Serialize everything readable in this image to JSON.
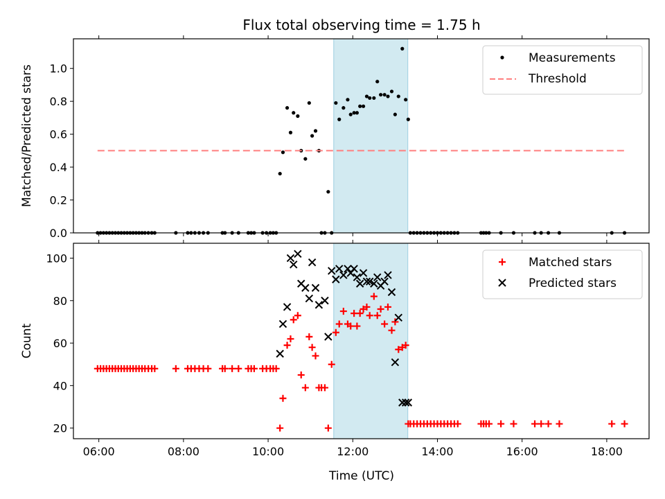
{
  "figure": {
    "title": "Flux total observing time = 1.75 h",
    "xlabel": "Time (UTC)",
    "highlight_window": [
      11.55,
      13.3
    ],
    "highlight_color": "#add8e6"
  },
  "chart_data": [
    {
      "type": "scatter",
      "ylabel": "Matched/Predicted stars",
      "xlim": [
        5.4,
        19.0
      ],
      "ylim": [
        0,
        1.18
      ],
      "xticks": [
        6,
        8,
        10,
        12,
        14,
        16,
        18
      ],
      "xtick_labels": [
        "06:00",
        "08:00",
        "10:00",
        "12:00",
        "14:00",
        "16:00",
        "18:00"
      ],
      "yticks": [
        0,
        0.2,
        0.4,
        0.6,
        0.8,
        1.0
      ],
      "ytick_labels": [
        "0.0",
        "0.2",
        "0.4",
        "0.6",
        "0.8",
        "1.0"
      ],
      "legend_position": "top-right",
      "series": [
        {
          "name": "Measurements",
          "kind": "dots",
          "color": "#000000",
          "x": [
            5.97,
            6.04,
            6.11,
            6.18,
            6.25,
            6.32,
            6.39,
            6.46,
            6.53,
            6.6,
            6.67,
            6.74,
            6.81,
            6.88,
            6.95,
            7.02,
            7.09,
            7.17,
            7.25,
            7.32,
            7.82,
            8.1,
            8.18,
            8.27,
            8.37,
            8.47,
            8.58,
            8.92,
            8.98,
            9.15,
            9.3,
            9.53,
            9.6,
            9.67,
            9.87,
            9.96,
            10.05,
            10.12,
            10.19,
            10.28,
            10.35,
            10.45,
            10.53,
            10.6,
            10.7,
            10.78,
            10.88,
            10.97,
            11.04,
            11.12,
            11.2,
            11.26,
            11.34,
            11.42,
            11.5,
            11.6,
            11.68,
            11.78,
            11.88,
            11.95,
            12.03,
            12.1,
            12.17,
            12.25,
            12.33,
            12.4,
            12.5,
            12.58,
            12.66,
            12.75,
            12.83,
            12.92,
            13.0,
            13.08,
            13.17,
            13.25,
            13.31,
            13.36,
            13.44,
            13.52,
            13.6,
            13.68,
            13.76,
            13.84,
            13.92,
            14.0,
            14.08,
            14.16,
            14.24,
            14.32,
            14.4,
            14.48,
            15.03,
            15.09,
            15.15,
            15.22,
            15.5,
            15.8,
            16.3,
            16.45,
            16.62,
            16.88,
            18.12,
            18.42
          ],
          "y": [
            0,
            0,
            0,
            0,
            0,
            0,
            0,
            0,
            0,
            0,
            0,
            0,
            0,
            0,
            0,
            0,
            0,
            0,
            0,
            0,
            0,
            0,
            0,
            0,
            0,
            0,
            0,
            0,
            0,
            0,
            0,
            0,
            0,
            0,
            0,
            0,
            0,
            0,
            0,
            0.36,
            0.49,
            0.76,
            0.61,
            0.73,
            0.71,
            0.5,
            0.45,
            0.79,
            0.59,
            0.62,
            0.5,
            0,
            0,
            0.25,
            0,
            0.79,
            0.69,
            0.76,
            0.81,
            0.72,
            0.73,
            0.73,
            0.77,
            0.77,
            0.83,
            0.82,
            0.82,
            0.92,
            0.84,
            0.84,
            0.83,
            0.86,
            0.72,
            0.83,
            1.12,
            0.81,
            0.69,
            0,
            0,
            0,
            0,
            0,
            0,
            0,
            0,
            0,
            0,
            0,
            0,
            0,
            0,
            0,
            0,
            0,
            0,
            0,
            0,
            0,
            0,
            0,
            0,
            0,
            0,
            0
          ]
        },
        {
          "name": "Threshold",
          "kind": "dashed-line",
          "color": "#ff7f7f",
          "x": [
            5.97,
            18.42
          ],
          "y": [
            0.5,
            0.5
          ]
        }
      ]
    },
    {
      "type": "scatter",
      "ylabel": "Count",
      "xlim": [
        5.4,
        19.0
      ],
      "ylim": [
        15,
        107
      ],
      "xticks": [
        6,
        8,
        10,
        12,
        14,
        16,
        18
      ],
      "xtick_labels": [
        "06:00",
        "08:00",
        "10:00",
        "12:00",
        "14:00",
        "16:00",
        "18:00"
      ],
      "yticks": [
        20,
        40,
        60,
        80,
        100
      ],
      "ytick_labels": [
        "20",
        "40",
        "60",
        "80",
        "100"
      ],
      "legend_position": "top-right",
      "series": [
        {
          "name": "Matched stars",
          "kind": "plus",
          "color": "#ff0000",
          "x": [
            5.97,
            6.04,
            6.11,
            6.18,
            6.25,
            6.32,
            6.39,
            6.46,
            6.53,
            6.6,
            6.67,
            6.74,
            6.81,
            6.88,
            6.95,
            7.02,
            7.09,
            7.17,
            7.25,
            7.32,
            7.82,
            8.1,
            8.18,
            8.27,
            8.37,
            8.47,
            8.58,
            8.92,
            8.98,
            9.15,
            9.3,
            9.53,
            9.6,
            9.67,
            9.87,
            9.96,
            10.05,
            10.12,
            10.19,
            10.28,
            10.35,
            10.45,
            10.53,
            10.6,
            10.7,
            10.78,
            10.88,
            10.97,
            11.04,
            11.12,
            11.2,
            11.26,
            11.34,
            11.42,
            11.5,
            11.6,
            11.68,
            11.78,
            11.88,
            11.95,
            12.03,
            12.1,
            12.17,
            12.25,
            12.33,
            12.4,
            12.5,
            12.58,
            12.66,
            12.75,
            12.83,
            12.92,
            13.0,
            13.08,
            13.17,
            13.25,
            13.31,
            13.36,
            13.44,
            13.52,
            13.6,
            13.68,
            13.76,
            13.84,
            13.92,
            14.0,
            14.08,
            14.16,
            14.24,
            14.32,
            14.4,
            14.48,
            15.03,
            15.09,
            15.15,
            15.22,
            15.5,
            15.8,
            16.3,
            16.45,
            16.62,
            16.88,
            18.12,
            18.42
          ],
          "y": [
            48,
            48,
            48,
            48,
            48,
            48,
            48,
            48,
            48,
            48,
            48,
            48,
            48,
            48,
            48,
            48,
            48,
            48,
            48,
            48,
            48,
            48,
            48,
            48,
            48,
            48,
            48,
            48,
            48,
            48,
            48,
            48,
            48,
            48,
            48,
            48,
            48,
            48,
            48,
            20,
            34,
            59,
            62,
            71,
            73,
            45,
            39,
            63,
            58,
            54,
            39,
            39,
            39,
            20,
            50,
            65,
            69,
            75,
            69,
            68,
            74,
            68,
            74,
            76,
            77,
            73,
            82,
            73,
            76,
            69,
            77,
            66,
            70,
            57,
            58,
            59,
            22,
            22,
            22,
            22,
            22,
            22,
            22,
            22,
            22,
            22,
            22,
            22,
            22,
            22,
            22,
            22,
            22,
            22,
            22,
            22,
            22,
            22,
            22,
            22,
            22,
            22,
            22,
            22
          ]
        },
        {
          "name": "Predicted stars",
          "kind": "cross",
          "color": "#000000",
          "x": [
            10.28,
            10.35,
            10.45,
            10.53,
            10.6,
            10.7,
            10.78,
            10.88,
            10.97,
            11.04,
            11.12,
            11.2,
            11.34,
            11.42,
            11.5,
            11.6,
            11.68,
            11.78,
            11.88,
            11.95,
            12.03,
            12.1,
            12.17,
            12.25,
            12.33,
            12.4,
            12.5,
            12.58,
            12.66,
            12.75,
            12.83,
            12.92,
            13.0,
            13.08,
            13.17,
            13.25,
            13.31
          ],
          "y": [
            55,
            69,
            77,
            100,
            97,
            102,
            88,
            86,
            81,
            98,
            86,
            78,
            80,
            63,
            94,
            90,
            95,
            92,
            95,
            93,
            95,
            91,
            88,
            93,
            89,
            89,
            88,
            91,
            87,
            89,
            92,
            84,
            51,
            72,
            32,
            32,
            32
          ]
        }
      ]
    }
  ]
}
